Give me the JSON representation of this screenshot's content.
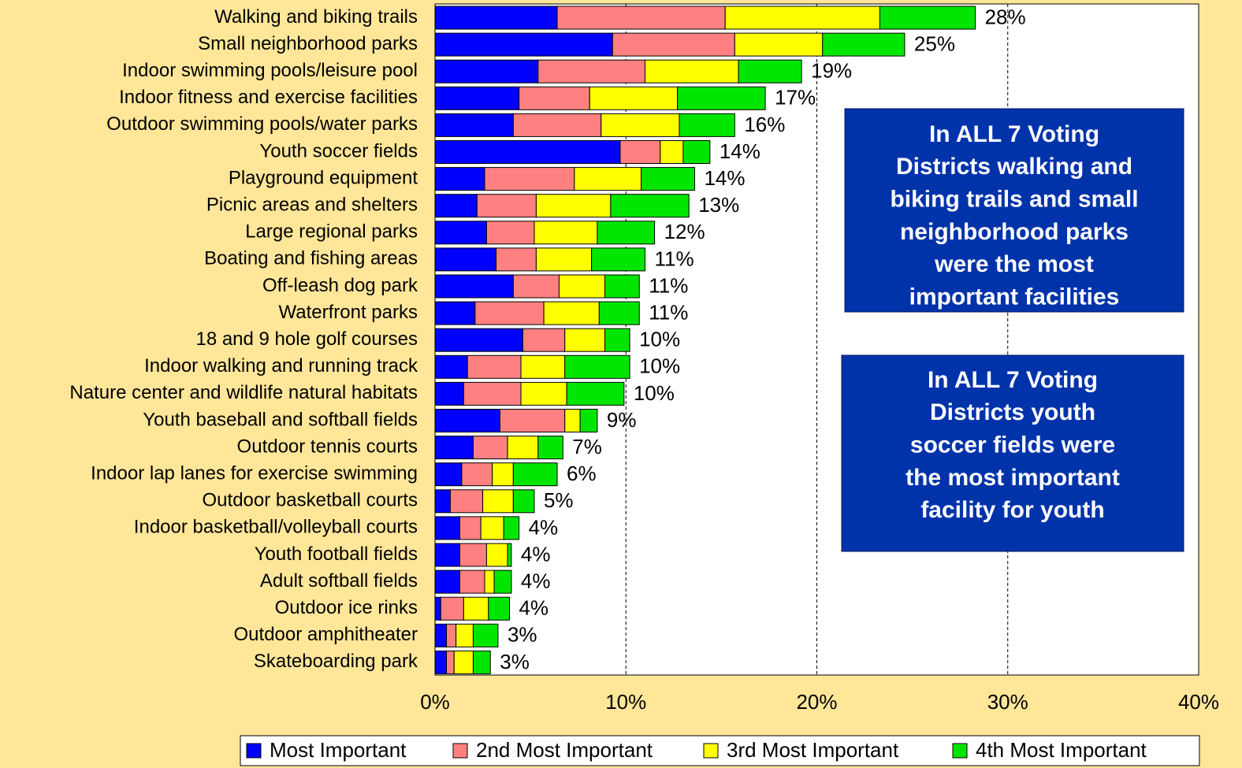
{
  "chart_data": {
    "type": "stacked_bar_horizontal",
    "categories": [
      "Walking and biking trails",
      "Small neighborhood parks",
      "Indoor swimming pools/leisure pool",
      "Indoor fitness and exercise facilities",
      "Outdoor swimming pools/water parks",
      "Youth soccer fields",
      "Playground equipment",
      "Picnic areas and shelters",
      "Large regional parks",
      "Boating and fishing areas",
      "Off-leash dog park",
      "Waterfront parks",
      "18 and 9 hole golf courses",
      "Indoor walking and running track",
      "Nature center and wildlife natural habitats",
      "Youth baseball and softball fields",
      "Outdoor tennis courts",
      "Indoor lap lanes for exercise swimming",
      "Outdoor basketball courts",
      "Indoor basketball/volleyball courts",
      "Youth football fields",
      "Adult softball fields",
      "Outdoor ice rinks",
      "Outdoor amphitheater",
      "Skateboarding park"
    ],
    "series": [
      {
        "name": "Most Important",
        "color": "#0000FF",
        "values": [
          6.4,
          9.3,
          5.4,
          4.4,
          4.1,
          9.7,
          2.6,
          2.2,
          2.7,
          3.2,
          4.1,
          2.1,
          4.6,
          1.7,
          1.5,
          3.4,
          2.0,
          1.4,
          0.8,
          1.3,
          1.3,
          1.3,
          0.3,
          0.6,
          0.6
        ]
      },
      {
        "name": "2nd Most Important",
        "color": "#FF8080",
        "values": [
          8.8,
          6.4,
          5.6,
          3.7,
          4.6,
          2.1,
          4.7,
          3.1,
          2.5,
          2.1,
          2.4,
          3.6,
          2.2,
          2.8,
          3.0,
          3.4,
          1.8,
          1.6,
          1.7,
          1.1,
          1.4,
          1.3,
          1.2,
          0.5,
          0.4
        ]
      },
      {
        "name": "3rd Most Important",
        "color": "#FFFF00",
        "values": [
          8.1,
          4.6,
          4.9,
          4.6,
          4.1,
          1.2,
          3.5,
          3.9,
          3.3,
          2.9,
          2.4,
          2.9,
          2.1,
          2.3,
          2.4,
          0.8,
          1.6,
          1.1,
          1.6,
          1.2,
          1.1,
          0.5,
          1.3,
          0.9,
          1.0
        ]
      },
      {
        "name": "4th Most Important",
        "color": "#00E600",
        "values": [
          5.0,
          4.3,
          3.3,
          4.6,
          2.9,
          1.4,
          2.8,
          4.1,
          3.0,
          2.8,
          1.8,
          2.1,
          1.3,
          3.4,
          3.0,
          0.9,
          1.3,
          2.3,
          1.1,
          0.8,
          0.2,
          0.9,
          1.1,
          1.3,
          0.9
        ]
      }
    ],
    "total_labels": [
      "28%",
      "25%",
      "19%",
      "17%",
      "16%",
      "14%",
      "14%",
      "13%",
      "12%",
      "11%",
      "11%",
      "11%",
      "10%",
      "10%",
      "10%",
      "9%",
      "7%",
      "6%",
      "5%",
      "4%",
      "4%",
      "4%",
      "4%",
      "3%",
      "3%"
    ],
    "xlim": [
      0,
      40
    ],
    "xticks": [
      {
        "value": 0,
        "label": "0%"
      },
      {
        "value": 10,
        "label": "10%"
      },
      {
        "value": 20,
        "label": "20%"
      },
      {
        "value": 30,
        "label": "30%"
      },
      {
        "value": 40,
        "label": "40%"
      }
    ],
    "grid": true,
    "legend": "bottom",
    "annotations": [
      {
        "lines": [
          "In ALL 7 Voting",
          "Districts walking and",
          "biking trails and small",
          "neighborhood parks",
          "were the most",
          "important facilities"
        ]
      },
      {
        "lines": [
          "In ALL 7 Voting",
          "Districts youth",
          "soccer fields were",
          "the most important",
          "facility for youth"
        ]
      }
    ]
  }
}
